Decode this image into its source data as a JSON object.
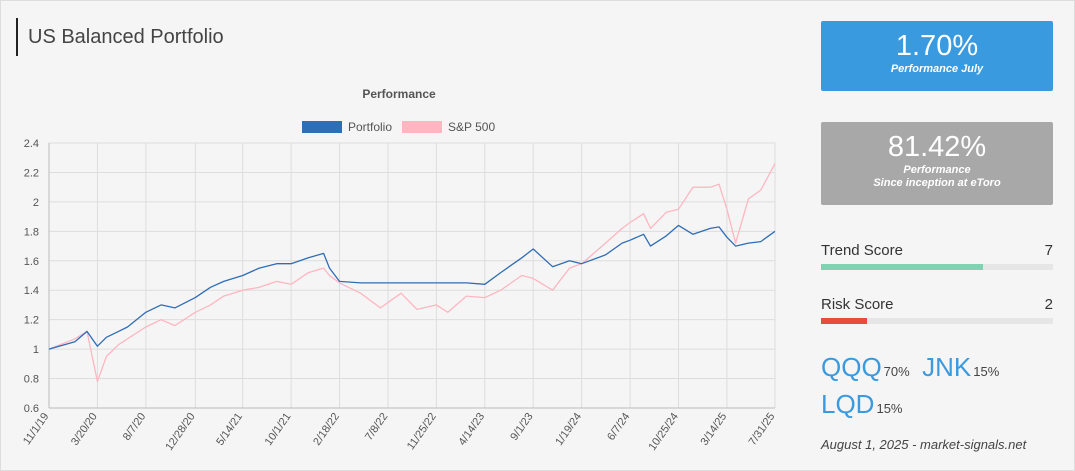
{
  "page": {
    "title": "US Balanced Portfolio"
  },
  "chart_data": {
    "type": "line",
    "title": "Performance",
    "ylim": [
      0.6,
      2.4
    ],
    "yticks": [
      "0.6",
      "0.8",
      "1",
      "1.2",
      "1.4",
      "1.6",
      "1.8",
      "2",
      "2.2",
      "2.4"
    ],
    "xticks": [
      "11/1/19",
      "3/20/20",
      "8/7/20",
      "12/28/20",
      "5/14/21",
      "10/1/21",
      "2/18/22",
      "7/8/22",
      "11/25/22",
      "4/14/23",
      "9/1/23",
      "1/19/24",
      "6/7/24",
      "10/25/24",
      "3/14/25",
      "7/31/25"
    ],
    "grid": true,
    "legend_position": "top",
    "series": [
      {
        "name": "Portfolio",
        "color": "#2f6db4",
        "x": [
          "11/1/19",
          "1/15/20",
          "2/19/20",
          "3/20/20",
          "4/15/20",
          "5/20/20",
          "6/15/20",
          "8/7/20",
          "9/20/20",
          "10/30/20",
          "12/28/20",
          "2/10/21",
          "3/20/21",
          "5/14/21",
          "7/1/21",
          "8/20/21",
          "10/1/21",
          "11/20/21",
          "1/3/22",
          "1/20/22",
          "2/18/22",
          "4/20/22",
          "7/8/22",
          "9/15/22",
          "11/25/22",
          "1/10/23",
          "2/20/23",
          "4/14/23",
          "5/30/23",
          "7/30/23",
          "9/1/23",
          "10/27/23",
          "12/15/23",
          "1/19/24",
          "3/28/24",
          "5/15/24",
          "6/7/24",
          "7/16/24",
          "8/5/24",
          "9/20/24",
          "10/25/24",
          "12/6/24",
          "1/25/25",
          "2/19/25",
          "3/14/25",
          "4/8/25",
          "5/15/25",
          "6/20/25",
          "7/31/25"
        ],
        "values": [
          1.0,
          1.05,
          1.12,
          1.02,
          1.08,
          1.12,
          1.15,
          1.25,
          1.3,
          1.28,
          1.35,
          1.42,
          1.46,
          1.5,
          1.55,
          1.58,
          1.58,
          1.62,
          1.65,
          1.55,
          1.46,
          1.45,
          1.45,
          1.45,
          1.45,
          1.45,
          1.45,
          1.44,
          1.52,
          1.62,
          1.68,
          1.56,
          1.6,
          1.58,
          1.64,
          1.72,
          1.74,
          1.78,
          1.7,
          1.77,
          1.84,
          1.78,
          1.82,
          1.83,
          1.76,
          1.7,
          1.72,
          1.73,
          1.8
        ]
      },
      {
        "name": "S&P 500",
        "color": "#ffb6c1",
        "x": [
          "11/1/19",
          "1/15/20",
          "2/19/20",
          "3/20/20",
          "4/15/20",
          "5/20/20",
          "6/15/20",
          "8/7/20",
          "9/20/20",
          "10/30/20",
          "12/28/20",
          "2/10/21",
          "3/20/21",
          "5/14/21",
          "7/1/21",
          "8/20/21",
          "10/1/21",
          "11/20/21",
          "1/3/22",
          "1/20/22",
          "2/18/22",
          "4/20/22",
          "6/16/22",
          "8/15/22",
          "9/30/22",
          "11/25/22",
          "12/28/22",
          "2/20/23",
          "4/14/23",
          "5/30/23",
          "7/30/23",
          "9/1/23",
          "10/27/23",
          "12/15/23",
          "1/19/24",
          "3/28/24",
          "5/15/24",
          "6/7/24",
          "7/16/24",
          "8/5/24",
          "9/20/24",
          "10/25/24",
          "12/6/24",
          "1/25/25",
          "2/19/25",
          "3/14/25",
          "4/8/25",
          "5/15/25",
          "6/20/25",
          "7/31/25"
        ],
        "values": [
          1.0,
          1.07,
          1.12,
          0.78,
          0.95,
          1.03,
          1.07,
          1.15,
          1.2,
          1.16,
          1.25,
          1.3,
          1.36,
          1.4,
          1.42,
          1.46,
          1.44,
          1.52,
          1.55,
          1.5,
          1.45,
          1.38,
          1.28,
          1.38,
          1.27,
          1.3,
          1.25,
          1.36,
          1.35,
          1.4,
          1.5,
          1.48,
          1.4,
          1.55,
          1.58,
          1.72,
          1.82,
          1.86,
          1.92,
          1.82,
          1.93,
          1.95,
          2.1,
          2.1,
          2.12,
          1.95,
          1.72,
          2.02,
          2.08,
          2.26
        ]
      }
    ]
  },
  "cards": {
    "july": {
      "value": "1.70%",
      "label": "Performance July",
      "color": "#3a9ae0"
    },
    "inception": {
      "value": "81.42%",
      "label1": "Performance",
      "label2": "Since inception at eToro",
      "color": "#a8a8a8"
    }
  },
  "scores": {
    "trend": {
      "label": "Trend Score",
      "value": "7",
      "level": 0.7,
      "color": "#7ed3b2"
    },
    "risk": {
      "label": "Risk Score",
      "value": "2",
      "level": 0.2,
      "color": "#e74c3c"
    }
  },
  "holdings": [
    {
      "ticker": "QQQ",
      "weight": "70%"
    },
    {
      "ticker": "JNK",
      "weight": "15%"
    },
    {
      "ticker": "LQD",
      "weight": "15%"
    }
  ],
  "footer": "August 1, 2025 - market-signals.net"
}
